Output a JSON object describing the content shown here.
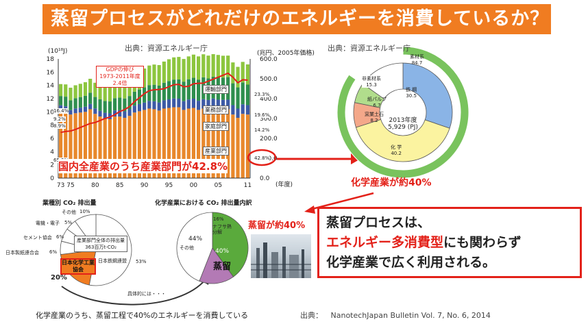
{
  "title": "蒸留プロセスがどれだけのエネルギーを消費しているか？",
  "sources": {
    "chart_source": "出典：資源エネルギー庁",
    "donut_source": "出典：資源エネルギー庁",
    "bottom_source_label": "出典：",
    "bottom_source": "NanotechJapan Bulletin Vol. 7, No. 6, 2014"
  },
  "callouts": {
    "industry_share": "国内全産業のうち産業部門が42.8%",
    "chemical_share": "化学産業が約40%",
    "distillation_share": "蒸留が約40%",
    "concretely": "具体的には・・・",
    "bottom_caption": "化学産業のうち、蒸留工程で40%のエネルギーを消費している"
  },
  "message": {
    "line1": "蒸留プロセスは、",
    "line2_highlight": "エネルギー多消費型",
    "line2_rest": "にも関わらず",
    "line3": "化学産業で広く利用される。"
  },
  "chart_data": [
    {
      "type": "bar",
      "unit_left": "(10¹⁸J)",
      "unit_right": "(兆円、2005年価格)",
      "x_unit": "(年度)",
      "x_ticks": [
        "73",
        "75",
        "80",
        "85",
        "90",
        "95",
        "00",
        "05",
        "11"
      ],
      "x_tick_values": [
        1973,
        1975,
        1980,
        1985,
        1990,
        1995,
        2000,
        2005,
        2011
      ],
      "ylim": [
        0,
        18
      ],
      "y_ticks": [
        "0",
        "2",
        "4",
        "6",
        "8",
        "10",
        "12",
        "14",
        "16",
        "18"
      ],
      "y2lim": [
        0,
        600
      ],
      "y2_ticks": [
        "0.0",
        "100.0",
        "200.0",
        "300.0",
        "400.0",
        "500.0",
        "600.0"
      ],
      "years": [
        1973,
        1974,
        1975,
        1976,
        1977,
        1978,
        1979,
        1980,
        1981,
        1982,
        1983,
        1984,
        1985,
        1986,
        1987,
        1988,
        1989,
        1990,
        1991,
        1992,
        1993,
        1994,
        1995,
        1996,
        1997,
        1998,
        1999,
        2000,
        2001,
        2002,
        2003,
        2004,
        2005,
        2006,
        2007,
        2008,
        2009,
        2010,
        2011
      ],
      "series": [
        {
          "name": "産業部門",
          "color": "#e8882c",
          "values": [
            10.4,
            10.2,
            9.6,
            9.8,
            9.9,
            10.0,
            10.4,
            9.7,
            9.3,
            9.0,
            8.9,
            9.3,
            9.3,
            9.1,
            9.4,
            9.9,
            10.1,
            10.3,
            10.5,
            10.4,
            10.2,
            10.5,
            10.6,
            10.7,
            10.7,
            10.3,
            10.5,
            10.6,
            10.3,
            10.5,
            10.4,
            10.6,
            10.4,
            10.4,
            10.4,
            9.6,
            9.1,
            9.7,
            9.6
          ]
        },
        {
          "name": "家庭部門",
          "color": "#3c5aa6",
          "values": [
            0.6,
            0.65,
            0.67,
            0.72,
            0.74,
            0.78,
            0.8,
            0.83,
            0.85,
            0.87,
            0.88,
            0.92,
            0.95,
            0.98,
            1.0,
            1.05,
            1.08,
            1.1,
            1.15,
            1.2,
            1.22,
            1.25,
            1.3,
            1.33,
            1.3,
            1.32,
            1.38,
            1.4,
            1.38,
            1.42,
            1.4,
            1.42,
            1.45,
            1.43,
            1.45,
            1.42,
            1.4,
            1.45,
            1.42
          ]
        },
        {
          "name": "業務部門",
          "color": "#2f8f4e",
          "values": [
            1.4,
            1.45,
            1.48,
            1.55,
            1.6,
            1.65,
            1.7,
            1.72,
            1.75,
            1.78,
            1.8,
            1.85,
            1.9,
            1.95,
            2.0,
            2.1,
            2.2,
            2.3,
            2.4,
            2.5,
            2.55,
            2.65,
            2.75,
            2.85,
            2.9,
            2.95,
            3.05,
            3.15,
            3.2,
            3.3,
            3.25,
            3.3,
            3.4,
            3.35,
            3.4,
            3.3,
            3.2,
            3.3,
            3.1
          ]
        },
        {
          "name": "運輸部門",
          "color": "#8dc63f",
          "values": [
            1.8,
            1.85,
            1.9,
            1.95,
            2.0,
            2.05,
            2.1,
            2.15,
            2.15,
            2.2,
            2.25,
            2.3,
            2.35,
            2.4,
            2.5,
            2.6,
            2.7,
            2.85,
            2.95,
            3.05,
            3.1,
            3.2,
            3.3,
            3.35,
            3.4,
            3.42,
            3.45,
            3.5,
            3.5,
            3.48,
            3.45,
            3.4,
            3.35,
            3.3,
            3.25,
            3.15,
            3.1,
            3.1,
            3.05
          ]
        }
      ],
      "gdp_line": {
        "color": "#e32119",
        "values": [
          230,
          235,
          237,
          245,
          255,
          265,
          275,
          280,
          290,
          300,
          307,
          320,
          335,
          345,
          360,
          385,
          405,
          425,
          440,
          445,
          446,
          450,
          460,
          470,
          472,
          460,
          462,
          475,
          477,
          478,
          488,
          498,
          508,
          518,
          528,
          508,
          480,
          495,
          493
        ]
      },
      "gdp_note": {
        "line1": "GDPの伸び",
        "line2": "1973-2011年度",
        "line3": "2.4倍"
      },
      "left_pct_labels": [
        "16.4%",
        "9.2%",
        "8.9%",
        "65.5%"
      ],
      "right_pct_labels": [
        "23.3%",
        "19.6%",
        "14.2%",
        "42.8%"
      ]
    },
    {
      "type": "pie",
      "center_label": {
        "line1": "2013年度",
        "line2": "5,929 (PJ)"
      },
      "slices": [
        {
          "label": "鉄 鋼",
          "value": 30.5,
          "color": "#8ab4e6"
        },
        {
          "label": "化 学",
          "value": 40.2,
          "color": "#fbf3a0"
        },
        {
          "label": "窯業土石",
          "value": 8.2,
          "color": "#f4a88a"
        },
        {
          "label": "紙パルプ",
          "value": 6.7,
          "color": "#b1dd8c"
        },
        {
          "label": "非素材系",
          "value": 15.3,
          "color": "#ffffff"
        }
      ],
      "outer_ring": [
        {
          "label": "素材系",
          "value": 84.7,
          "color": "#79c35d"
        }
      ]
    },
    {
      "type": "pie",
      "title": "業種別 CO₂ 排出量",
      "center_label": {
        "line1": "産業部門全体の排出量",
        "line2": "363百万t-CO₂"
      },
      "slices": [
        {
          "label": "日本鉄鋼連盟",
          "value": 53,
          "color": "#ffffff"
        },
        {
          "label": "日本化学工業協会",
          "value": 20,
          "color": "#f07c21"
        },
        {
          "label": "日本製紙連合会",
          "value": 6,
          "color": "#ffffff"
        },
        {
          "label": "セメント協会",
          "value": 6,
          "color": "#ffffff"
        },
        {
          "label": "電機・電子",
          "value": 5,
          "color": "#ffffff"
        },
        {
          "label": "その他",
          "value": 10,
          "color": "#ffffff"
        }
      ],
      "value_labels": [
        "53%",
        "20%",
        "6%",
        "6%",
        "5%",
        "10%"
      ]
    },
    {
      "type": "pie",
      "title": "化学産業における CO₂ 排出量内訳",
      "slices": [
        {
          "label": "蒸留",
          "value": 40,
          "color": "#5aaa3c"
        },
        {
          "label": "ナフサ熱分解",
          "value": 16,
          "color": "#b37ab5"
        },
        {
          "label": "その他",
          "value": 44,
          "color": "#ffffff"
        }
      ],
      "value_labels": [
        "40%",
        "16%",
        "44%"
      ]
    }
  ]
}
